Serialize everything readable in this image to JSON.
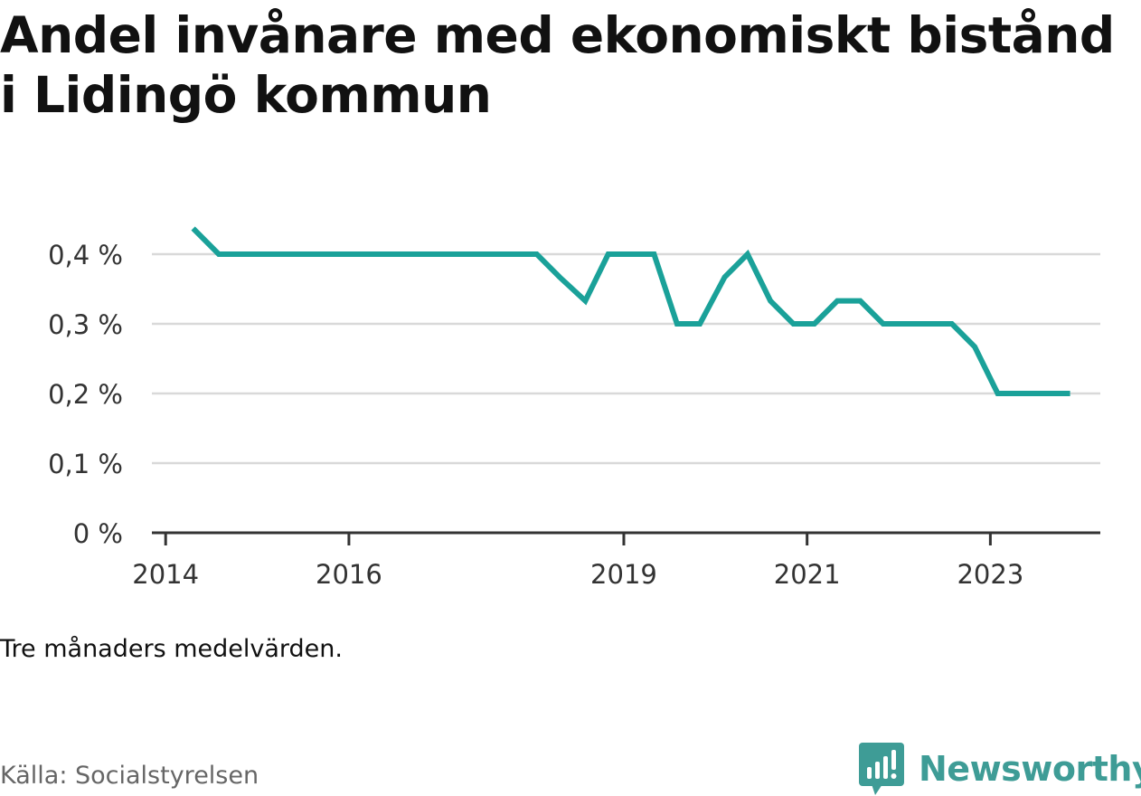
{
  "title": "Andel invånare med ekonomiskt bistånd i Lidingö kommun",
  "note": "Tre månaders medelvärden.",
  "source": "Källa: Socialstyrelsen",
  "brand": {
    "name": "Newsworthy",
    "icon": "newsworthy-logo-icon",
    "color": "#3e9c96"
  },
  "colors": {
    "line": "#1aa199",
    "grid": "#d9d9d9",
    "axis": "#333333"
  },
  "chart_data": {
    "type": "line",
    "title": "Andel invånare med ekonomiskt bistånd i Lidingö kommun",
    "xlabel": "",
    "ylabel": "",
    "y_ticks": [
      0,
      0.1,
      0.2,
      0.3,
      0.4
    ],
    "y_tick_labels": [
      "0 %",
      "0,1 %",
      "0,2 %",
      "0,3 %",
      "0,4 %"
    ],
    "x_ticks": [
      2014,
      2016,
      2019,
      2021,
      2023
    ],
    "x_tick_labels": [
      "2014",
      "2016",
      "2019",
      "2021",
      "2023"
    ],
    "xlim": [
      2013.85,
      2024.2
    ],
    "ylim": [
      0,
      0.4
    ],
    "grid": true,
    "series": [
      {
        "x": [
          2014.3,
          2014.58,
          2014.8,
          2015.05,
          2015.3,
          2015.55,
          2015.8,
          2016.05,
          2016.3,
          2016.55,
          2016.8,
          2017.05,
          2017.3,
          2017.55,
          2017.8,
          2018.05,
          2018.3,
          2018.58,
          2018.83,
          2019.08,
          2019.33,
          2019.58,
          2019.83,
          2020.1,
          2020.35,
          2020.6,
          2020.85,
          2021.08,
          2021.33,
          2021.58,
          2021.83,
          2022.08,
          2022.33,
          2022.58,
          2022.83,
          2023.08,
          2023.33,
          2023.58,
          2023.87
        ],
        "values": [
          0.437,
          0.4,
          0.4,
          0.4,
          0.4,
          0.4,
          0.4,
          0.4,
          0.4,
          0.4,
          0.4,
          0.4,
          0.4,
          0.4,
          0.4,
          0.4,
          0.367,
          0.333,
          0.4,
          0.4,
          0.4,
          0.3,
          0.3,
          0.367,
          0.4,
          0.333,
          0.3,
          0.3,
          0.333,
          0.333,
          0.3,
          0.3,
          0.3,
          0.3,
          0.267,
          0.2,
          0.2,
          0.2,
          0.2
        ]
      }
    ]
  }
}
